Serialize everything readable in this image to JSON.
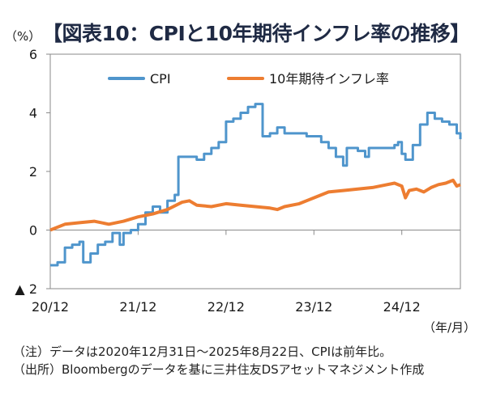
{
  "header": {
    "unit": "（%）",
    "title": "【図表10：CPIと10年期待インフレ率の推移】"
  },
  "notes": {
    "line1": "（注）データは2020年12月31日～2025年8月22日、CPIは前年比。",
    "line2": "（出所）Bloombergのデータを基に三井住友DSアセットマネジメント作成"
  },
  "chart_data": {
    "type": "line",
    "title": "CPIと10年期待インフレ率の推移",
    "ylabel": "（%）",
    "xlabel": "（年/月）",
    "ylim": [
      -2,
      6
    ],
    "xlim": [
      0,
      56
    ],
    "yticks": [
      -2,
      0,
      2,
      4,
      6
    ],
    "ytick_labels": [
      "▲ 2",
      "0",
      "2",
      "4",
      "6"
    ],
    "xticks": [
      0,
      12,
      24,
      36,
      48
    ],
    "xtick_labels": [
      "20/12",
      "21/12",
      "22/12",
      "23/12",
      "24/12"
    ],
    "grid": false,
    "legend": "top",
    "series": [
      {
        "name": "CPI",
        "color": "#4f95cc",
        "step": true,
        "points": [
          [
            0,
            -1.2
          ],
          [
            1,
            -1.1
          ],
          [
            2,
            -0.6
          ],
          [
            3,
            -0.5
          ],
          [
            4,
            -0.4
          ],
          [
            4.5,
            -1.1
          ],
          [
            5.5,
            -0.8
          ],
          [
            6.5,
            -0.5
          ],
          [
            7.5,
            -0.4
          ],
          [
            8.5,
            -0.1
          ],
          [
            9.5,
            -0.5
          ],
          [
            10,
            -0.1
          ],
          [
            11,
            0.0
          ],
          [
            12,
            0.2
          ],
          [
            13,
            0.6
          ],
          [
            14,
            0.8
          ],
          [
            15,
            0.6
          ],
          [
            16,
            1.0
          ],
          [
            17,
            1.2
          ],
          [
            17.5,
            2.5
          ],
          [
            20,
            2.4
          ],
          [
            21,
            2.6
          ],
          [
            22,
            2.8
          ],
          [
            23,
            3.0
          ],
          [
            24,
            3.7
          ],
          [
            25,
            3.8
          ],
          [
            26,
            4.0
          ],
          [
            27,
            4.2
          ],
          [
            28,
            4.3
          ],
          [
            29,
            3.2
          ],
          [
            30,
            3.3
          ],
          [
            31,
            3.5
          ],
          [
            32,
            3.3
          ],
          [
            33,
            3.3
          ],
          [
            34,
            3.3
          ],
          [
            35,
            3.2
          ],
          [
            36,
            3.2
          ],
          [
            37,
            3.0
          ],
          [
            38,
            2.8
          ],
          [
            39,
            2.5
          ],
          [
            40,
            2.2
          ],
          [
            40.5,
            2.8
          ],
          [
            42,
            2.7
          ],
          [
            43,
            2.5
          ],
          [
            43.5,
            2.8
          ],
          [
            47,
            2.9
          ],
          [
            47.5,
            3.0
          ],
          [
            48,
            2.6
          ],
          [
            48.5,
            2.4
          ],
          [
            49.5,
            2.9
          ],
          [
            50.5,
            3.6
          ],
          [
            51.5,
            4.0
          ],
          [
            52.5,
            3.8
          ],
          [
            53.5,
            3.7
          ],
          [
            54.5,
            3.6
          ],
          [
            55.5,
            3.3
          ],
          [
            56,
            3.1
          ]
        ]
      },
      {
        "name": "10年期待インフレ率",
        "color": "#ed7d31",
        "step": false,
        "points": [
          [
            0,
            0.0
          ],
          [
            2,
            0.2
          ],
          [
            4,
            0.25
          ],
          [
            6,
            0.3
          ],
          [
            8,
            0.2
          ],
          [
            10,
            0.3
          ],
          [
            12,
            0.45
          ],
          [
            14,
            0.55
          ],
          [
            16,
            0.7
          ],
          [
            18,
            0.95
          ],
          [
            19,
            1.0
          ],
          [
            20,
            0.85
          ],
          [
            22,
            0.8
          ],
          [
            24,
            0.9
          ],
          [
            26,
            0.85
          ],
          [
            28,
            0.8
          ],
          [
            30,
            0.75
          ],
          [
            31,
            0.7
          ],
          [
            32,
            0.8
          ],
          [
            34,
            0.9
          ],
          [
            36,
            1.1
          ],
          [
            38,
            1.3
          ],
          [
            40,
            1.35
          ],
          [
            42,
            1.4
          ],
          [
            44,
            1.45
          ],
          [
            46,
            1.55
          ],
          [
            47,
            1.6
          ],
          [
            48,
            1.5
          ],
          [
            48.5,
            1.1
          ],
          [
            49,
            1.35
          ],
          [
            50,
            1.4
          ],
          [
            51,
            1.3
          ],
          [
            52,
            1.45
          ],
          [
            53,
            1.55
          ],
          [
            54,
            1.6
          ],
          [
            55,
            1.7
          ],
          [
            55.5,
            1.5
          ],
          [
            56,
            1.55
          ]
        ]
      }
    ]
  }
}
